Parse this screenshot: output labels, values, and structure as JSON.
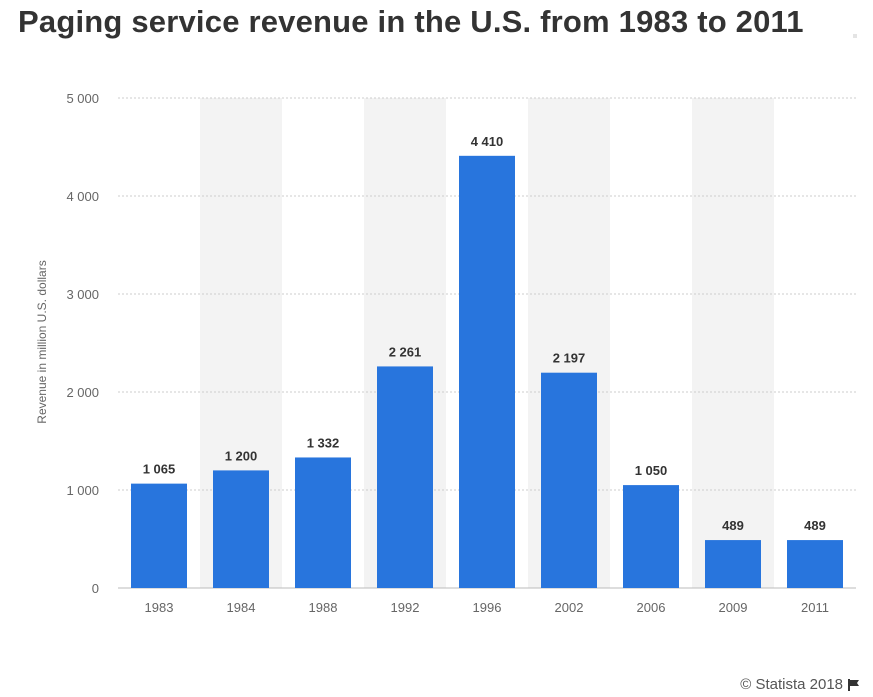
{
  "title": "Paging service revenue in the U.S. from 1983 to 2011",
  "footer": {
    "credit": "© Statista 2018",
    "flag_icon": "flag-icon"
  },
  "colors": {
    "bar": "#2875dd",
    "band": "#f3f3f3",
    "grid": "#cccccc",
    "text": "#333333",
    "axis_text": "#666666"
  },
  "chart_data": {
    "type": "bar",
    "title": "Paging service revenue in the U.S. from 1983 to 2011",
    "xlabel": "",
    "ylabel": "Revenue in million U.S. dollars",
    "categories": [
      "1983",
      "1984",
      "1988",
      "1992",
      "1996",
      "2002",
      "2006",
      "2009",
      "2011"
    ],
    "values": [
      1065,
      1200,
      1332,
      2261,
      4410,
      2197,
      1050,
      489,
      489
    ],
    "value_labels": [
      "1 065",
      "1 200",
      "1 332",
      "2 261",
      "4 410",
      "2 197",
      "1 050",
      "489",
      "489"
    ],
    "ylim": [
      0,
      5000
    ],
    "yticks": [
      0,
      1000,
      2000,
      3000,
      4000,
      5000
    ],
    "ytick_labels": [
      "0",
      "1 000",
      "2 000",
      "3 000",
      "4 000",
      "5 000"
    ],
    "grid": true,
    "alternating_bands": true
  }
}
